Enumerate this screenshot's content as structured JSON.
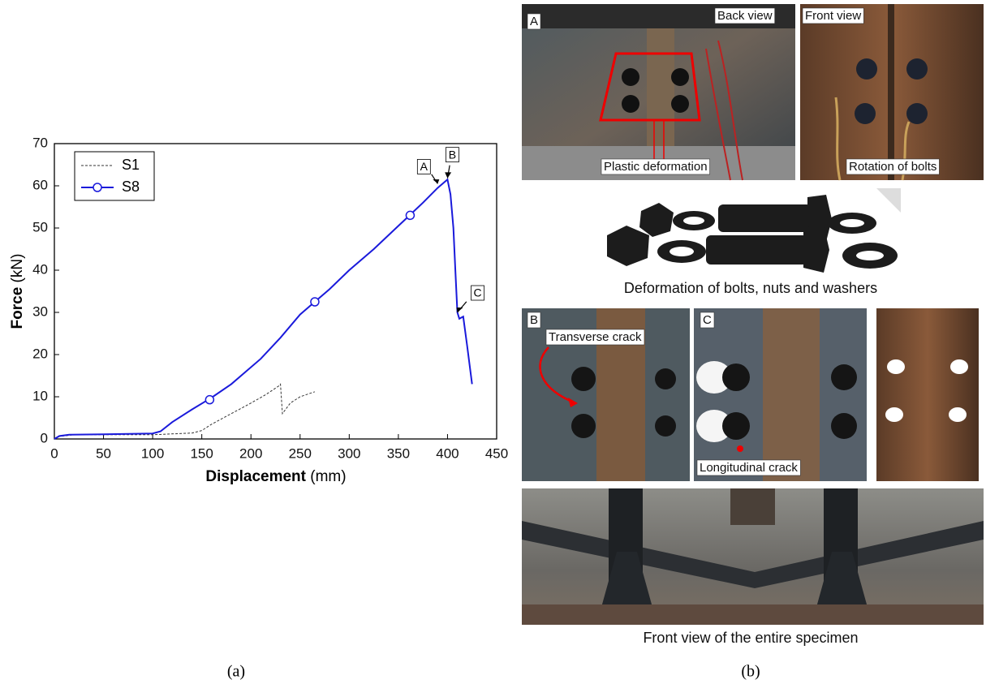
{
  "chart_data": {
    "type": "line",
    "xlabel": {
      "name": "Displacement",
      "unit": "(mm)"
    },
    "ylabel": {
      "name": "Force",
      "unit": "(kN)"
    },
    "xlim": [
      0,
      450
    ],
    "ylim": [
      0,
      70
    ],
    "xticks": [
      0,
      50,
      100,
      150,
      200,
      250,
      300,
      350,
      400,
      450
    ],
    "yticks": [
      0,
      10,
      20,
      30,
      40,
      50,
      60,
      70
    ],
    "legend": "upper left",
    "series": [
      {
        "name": "S1",
        "color": "#333333",
        "dashed": true,
        "x": [
          0,
          5,
          20,
          60,
          100,
          140,
          150,
          160,
          180,
          200,
          215,
          228,
          230,
          232,
          240,
          250,
          265
        ],
        "values": [
          0,
          0.6,
          1,
          1,
          1,
          1.4,
          2,
          3.5,
          6,
          8.5,
          10.5,
          12.5,
          13,
          6,
          8.5,
          10,
          11.2
        ]
      },
      {
        "name": "S8",
        "color": "#1a1adb",
        "dashed": false,
        "x": [
          0,
          5,
          15,
          50,
          100,
          108,
          120,
          140,
          160,
          180,
          195,
          210,
          230,
          250,
          265,
          280,
          300,
          325,
          350,
          375,
          390,
          400,
          403,
          406,
          408,
          410,
          412,
          416,
          420,
          425
        ],
        "values": [
          0,
          0.7,
          1,
          1.1,
          1.3,
          1.8,
          4,
          7,
          9.8,
          13,
          16,
          19,
          24,
          29.5,
          32.5,
          35.5,
          40,
          45,
          50.5,
          56,
          59.5,
          61.5,
          58,
          50,
          40,
          30,
          28.5,
          29,
          22,
          13
        ],
        "marker_x": [
          158,
          265,
          362
        ],
        "marker_values": [
          9.3,
          32.5,
          53
        ]
      }
    ],
    "annotations": [
      {
        "text": "A",
        "x": 390,
        "y": 60.5
      },
      {
        "text": "B",
        "x": 400,
        "y": 61.8
      },
      {
        "text": "C",
        "x": 410,
        "y": 30
      }
    ]
  },
  "panel_b": {
    "photo_a": {
      "label": "A",
      "view": "Back view",
      "note": "Plastic deformation"
    },
    "photo_front": {
      "view": "Front view",
      "note": "Rotation of bolts"
    },
    "bolts_caption": "Deformation of bolts, nuts and washers",
    "photo_b": {
      "label": "B",
      "note": "Transverse crack"
    },
    "photo_c": {
      "label": "C",
      "note": "Longitudinal crack"
    },
    "specimen_caption": "Front view of the entire specimen"
  },
  "captions": {
    "a": "(a)",
    "b": "(b)"
  }
}
